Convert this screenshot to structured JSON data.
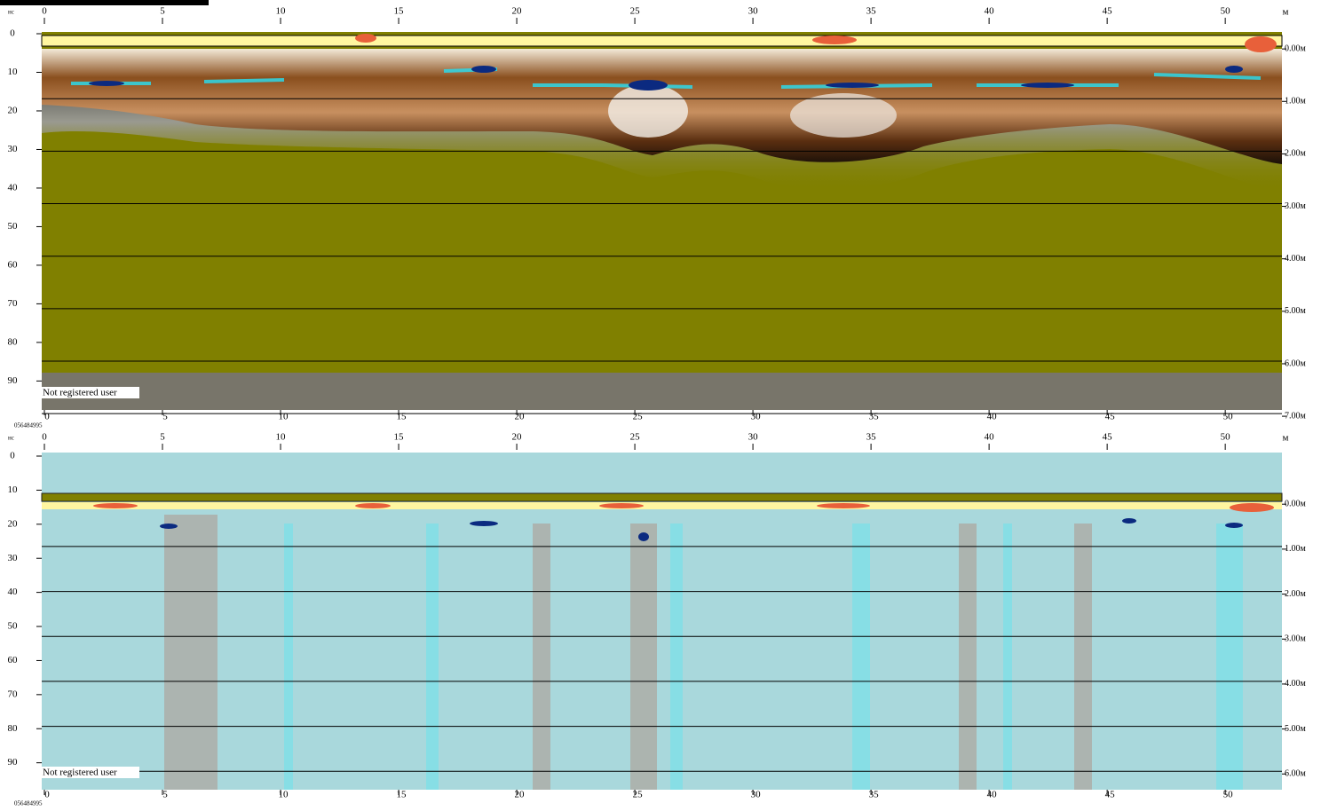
{
  "panels": [
    {
      "time_unit": "нс",
      "distance_unit": "м",
      "xlim": [
        0,
        52.4
      ],
      "xticks": [
        0,
        5,
        10,
        15,
        20,
        25,
        30,
        35,
        40,
        45,
        50
      ],
      "ylim": [
        0,
        97.5
      ],
      "yticks": [
        0,
        10,
        20,
        30,
        40,
        50,
        60,
        70,
        80,
        90
      ],
      "y2lim": [
        -0.29,
        6.88
      ],
      "y2ticks": [
        {
          "value": 0,
          "label": "0.00м"
        },
        {
          "value": 1,
          "label": "1.00м"
        },
        {
          "value": 2,
          "label": "2.00м"
        },
        {
          "value": 3,
          "label": "3.00м"
        },
        {
          "value": 4,
          "label": "4.00м"
        },
        {
          "value": 5,
          "label": "5.00м"
        },
        {
          "value": 6,
          "label": "6.00м"
        },
        {
          "value": 7,
          "label": "7.00м"
        }
      ],
      "watermark": "Not registered user",
      "serial": "056484995"
    },
    {
      "time_unit": "нс",
      "distance_unit": "м",
      "xlim": [
        0,
        52.4
      ],
      "xticks": [
        0,
        5,
        10,
        15,
        20,
        25,
        30,
        35,
        40,
        45,
        50
      ],
      "ylim": [
        0,
        97.9
      ],
      "yticks": [
        0,
        10,
        20,
        30,
        40,
        50,
        60,
        70,
        80,
        90
      ],
      "y2lim": [
        -1.07,
        6.35
      ],
      "y2ticks": [
        {
          "value": 0,
          "label": "0.00м"
        },
        {
          "value": 1,
          "label": "1.00м"
        },
        {
          "value": 2,
          "label": "2.00м"
        },
        {
          "value": 3,
          "label": "3.00м"
        },
        {
          "value": 4,
          "label": "4.00м"
        },
        {
          "value": 5,
          "label": "5.00м"
        },
        {
          "value": 6,
          "label": "6.00м"
        }
      ],
      "watermark": "Not registered user",
      "serial": "056484995"
    }
  ]
}
